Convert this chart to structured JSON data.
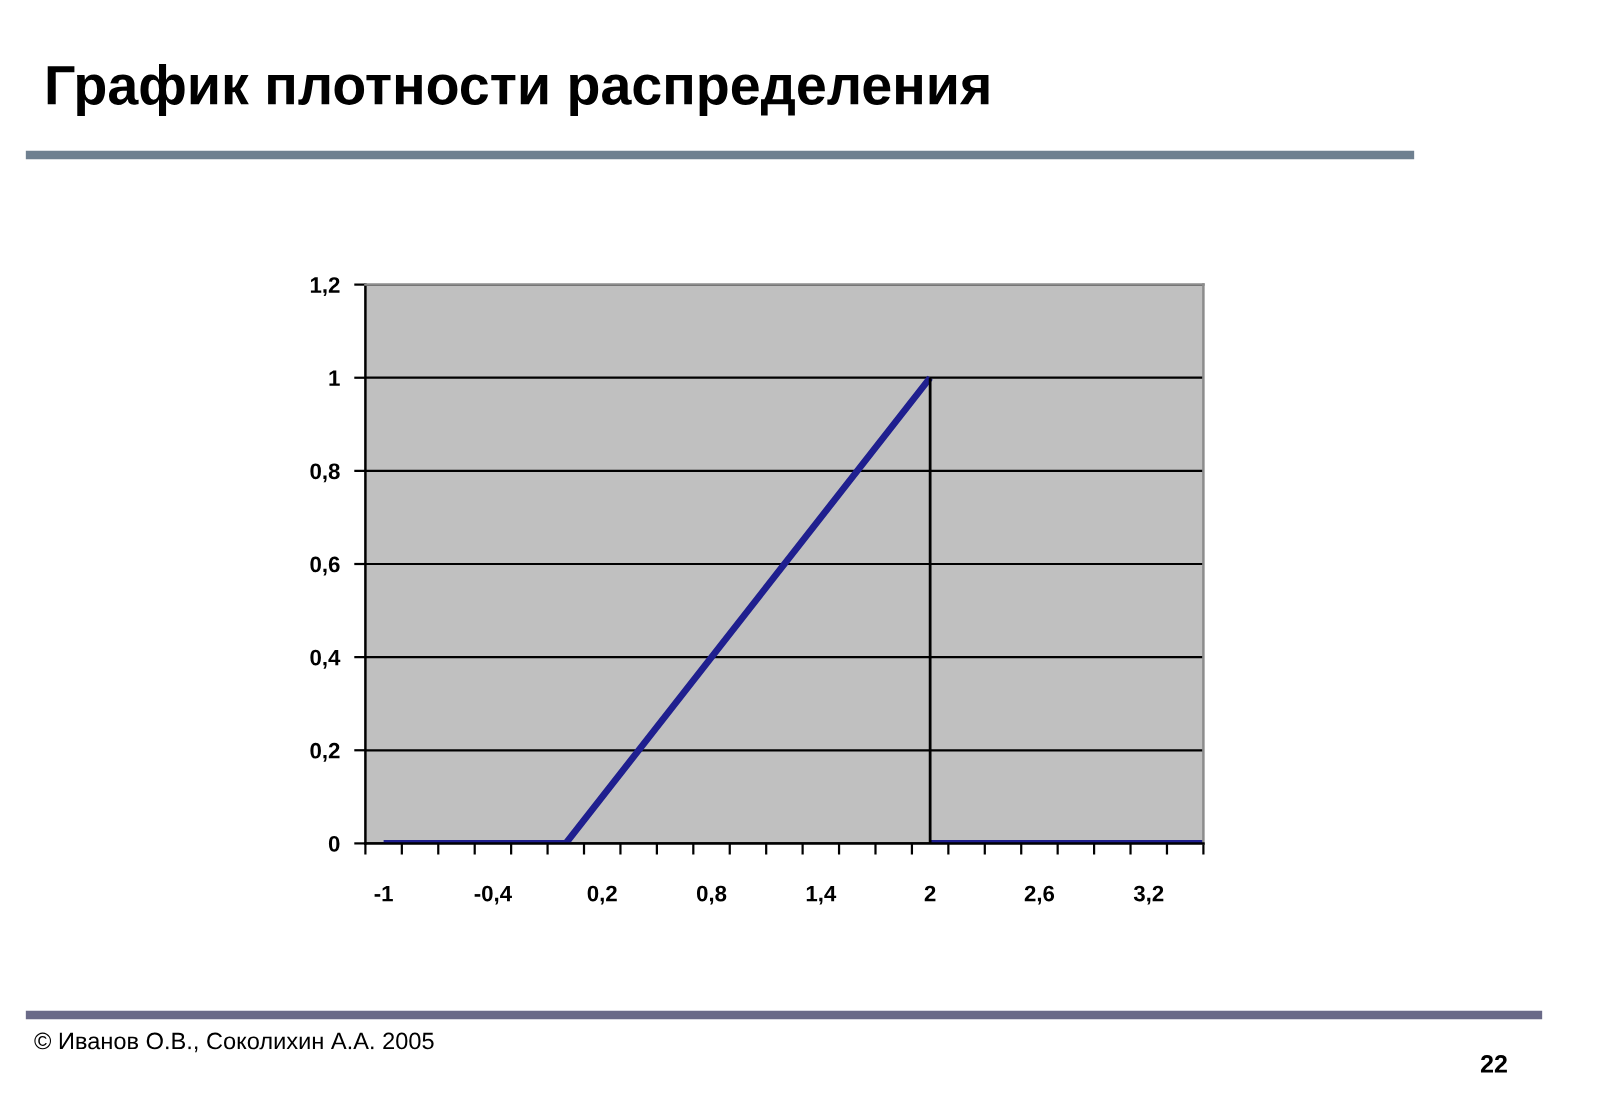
{
  "chart_data": {
    "type": "line",
    "title": "График плотности распределения",
    "annotations": [
      "© Иванов О.В., Соколихин А.А. 2005",
      "22"
    ],
    "series": [
      {
        "color": "#1f1f8f",
        "x": [
          -1,
          0,
          2
        ],
        "values": [
          0,
          0,
          1
        ]
      },
      {
        "color": "#1f1f8f",
        "x": [
          2,
          3.5
        ],
        "values": [
          0,
          0
        ]
      },
      {
        "color": "#000000",
        "x": [
          2,
          2
        ],
        "values": [
          0,
          1
        ]
      }
    ],
    "xlim": [
      -1.1,
      3.5
    ],
    "xticks": [
      {
        "value": -1.1,
        "label": null
      },
      -1,
      {
        "value": -0.9,
        "label": null
      },
      {
        "value": -0.7,
        "label": null
      },
      {
        "value": -0.5,
        "label": null
      },
      {
        "value": -0.4,
        "label": "-0,4"
      },
      {
        "value": -0.3,
        "label": null
      },
      {
        "value": -0.1,
        "label": null
      },
      {
        "value": 0.1,
        "label": null
      },
      {
        "value": 0.2,
        "label": "0,2"
      },
      {
        "value": 0.3,
        "label": null
      },
      {
        "value": 0.5,
        "label": null
      },
      {
        "value": 0.7,
        "label": null
      },
      {
        "value": 0.8,
        "label": "0,8"
      },
      {
        "value": 0.9,
        "label": null
      },
      {
        "value": 1.1,
        "label": null
      },
      {
        "value": 1.3,
        "label": null
      },
      {
        "value": 1.4,
        "label": "1,4"
      },
      {
        "value": 1.5,
        "label": null
      },
      {
        "value": 1.7,
        "label": null
      },
      {
        "value": 1.9,
        "label": null
      },
      2,
      {
        "value": 2.1,
        "label": null
      },
      {
        "value": 2.3,
        "label": null
      },
      {
        "value": 2.5,
        "label": null
      },
      {
        "value": 2.6,
        "label": "2,6"
      },
      {
        "value": 2.7,
        "label": null
      },
      {
        "value": 2.9,
        "label": null
      },
      {
        "value": 3.1,
        "label": null
      },
      {
        "value": 3.2,
        "label": "3,2"
      },
      {
        "value": 3.3,
        "label": null
      },
      {
        "value": 3.5,
        "label": null
      }
    ],
    "ylim": [
      0,
      1.2
    ],
    "yticks": [
      0,
      {
        "value": 0.2,
        "label": "0,2"
      },
      {
        "value": 0.4,
        "label": "0,4"
      },
      {
        "value": 0.6,
        "label": "0,6"
      },
      {
        "value": 0.8,
        "label": "0,8"
      },
      1,
      {
        "value": 1.2,
        "label": "1,2"
      }
    ],
    "grid": "y",
    "line_style": "solid"
  }
}
